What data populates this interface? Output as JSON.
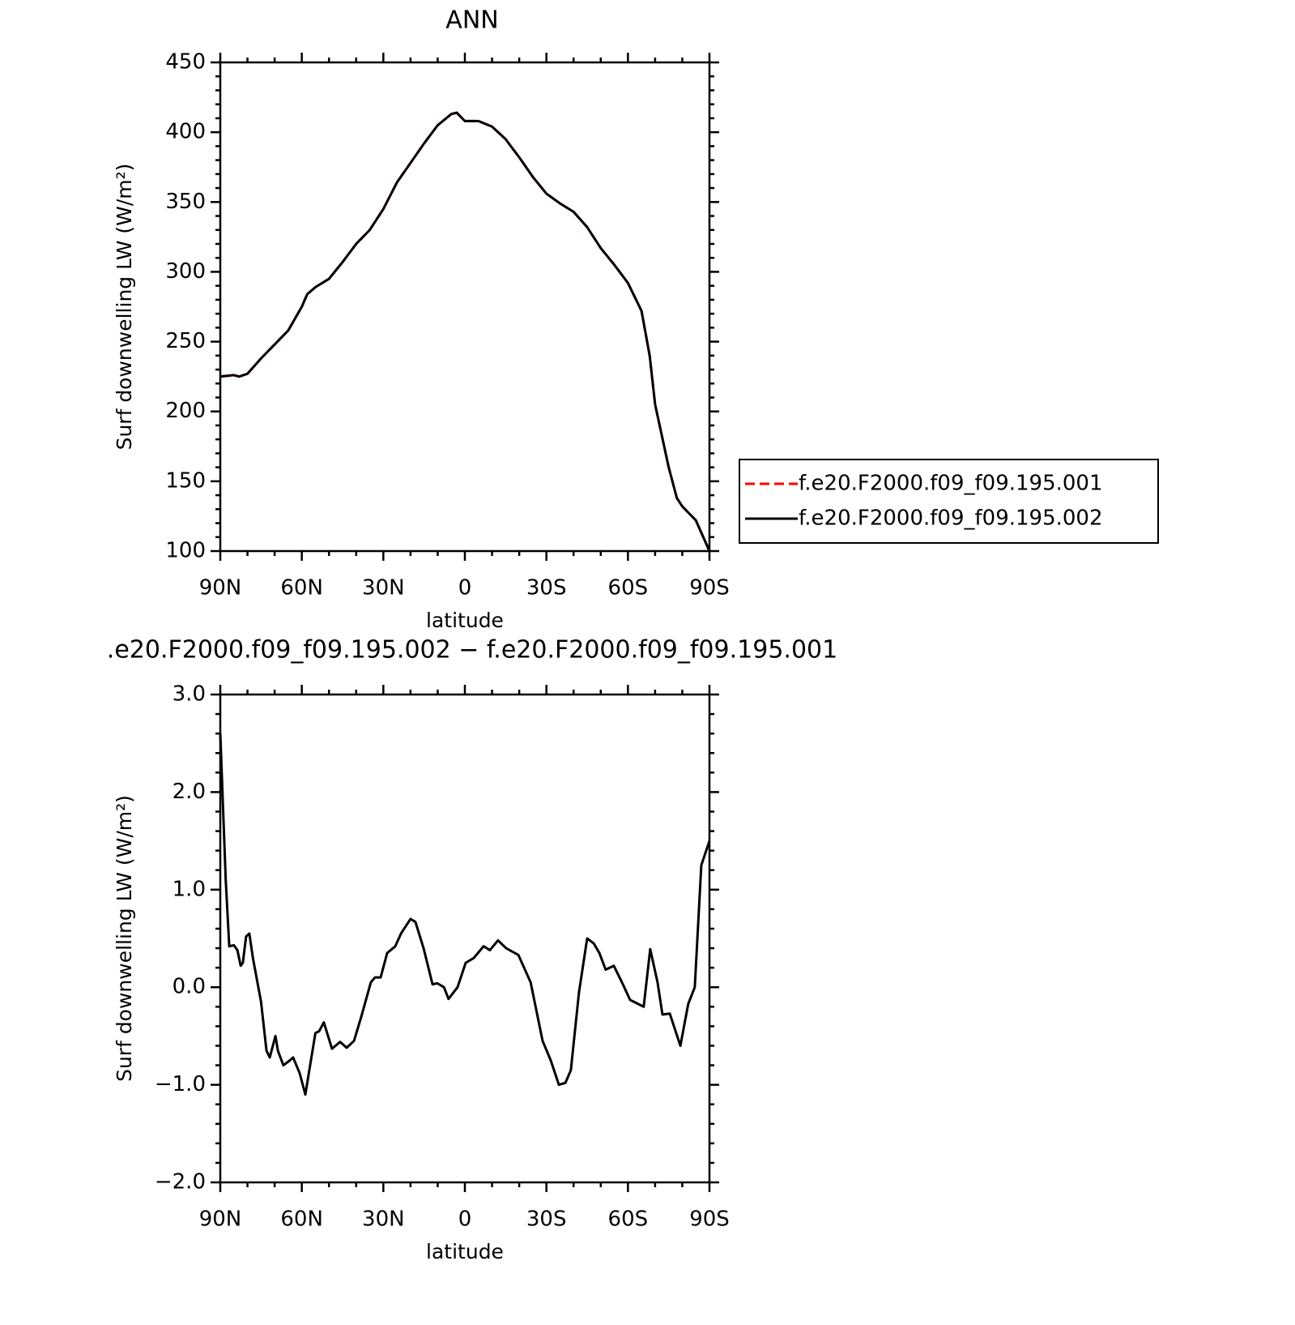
{
  "chart_data": [
    {
      "type": "line",
      "title": "ANN",
      "xlabel": "latitude",
      "ylabel": "Surf downwelling LW (W/m²)",
      "x": [
        90,
        85,
        83,
        80,
        75,
        70,
        65,
        60,
        58,
        55,
        50,
        45,
        40,
        35,
        30,
        25,
        20,
        15,
        10,
        5,
        3,
        0,
        -5,
        -10,
        -15,
        -20,
        -25,
        -30,
        -35,
        -40,
        -45,
        -50,
        -55,
        -60,
        -65,
        -68,
        -70,
        -75,
        -78,
        -80,
        -85,
        -90
      ],
      "series": [
        {
          "name": "f.e20.F2000.f09_f09.195.001",
          "color": "#ff0000",
          "dash": true,
          "values": [
            225,
            226,
            225,
            227,
            238,
            248,
            258,
            275,
            284,
            289,
            295,
            307,
            320,
            330,
            345,
            364,
            378,
            392,
            405,
            413,
            414,
            408,
            408,
            404,
            395,
            382,
            368,
            356,
            349,
            343,
            332,
            317,
            305,
            292,
            272,
            240,
            205,
            160,
            138,
            132,
            122,
            100
          ]
        },
        {
          "name": "f.e20.F2000.f09_f09.195.002",
          "color": "#000000",
          "dash": false,
          "values": [
            225,
            226,
            225,
            227,
            238,
            248,
            258,
            275,
            284,
            289,
            295,
            307,
            320,
            330,
            345,
            364,
            378,
            392,
            405,
            413,
            414,
            408,
            408,
            404,
            395,
            382,
            368,
            356,
            349,
            343,
            332,
            317,
            305,
            292,
            272,
            240,
            205,
            160,
            138,
            132,
            122,
            100
          ]
        }
      ],
      "xlim": [
        90,
        -90
      ],
      "xticks": [
        {
          "value": 90,
          "label": "90N"
        },
        {
          "value": 60,
          "label": "60N"
        },
        {
          "value": 30,
          "label": "30N"
        },
        0,
        {
          "value": -30,
          "label": "30S"
        },
        {
          "value": -60,
          "label": "60S"
        },
        {
          "value": -90,
          "label": "90S"
        }
      ],
      "ylim": [
        100,
        450
      ],
      "yticks": [
        100,
        150,
        200,
        250,
        300,
        350,
        400,
        450
      ],
      "legend": "right"
    },
    {
      "type": "line",
      "title": ".e20.F2000.f09_f09.195.002 − f.e20.F2000.f09_f09.195.001",
      "xlabel": "latitude",
      "ylabel": "Surf downwelling LW (W/m²)",
      "x": [
        90,
        88,
        86.7,
        85,
        83.7,
        82.5,
        81.7,
        80.5,
        79.3,
        78,
        75,
        73,
        71.8,
        69.7,
        68.8,
        66.8,
        64.4,
        63.2,
        60.8,
        58.7,
        55,
        53.6,
        51.9,
        48.9,
        45.9,
        43.5,
        40.8,
        38.1,
        34.6,
        33.1,
        31,
        28.6,
        25.6,
        23.5,
        20,
        18.2,
        15.2,
        11.9,
        10.1,
        7.7,
        6,
        2.7,
        -0.3,
        -3.3,
        -6.9,
        -9.2,
        -12.2,
        -15.2,
        -19.7,
        -24.2,
        -28.6,
        -31.6,
        -34.6,
        -37,
        -39,
        -42,
        -45,
        -47.4,
        -49.5,
        -51.8,
        -54.8,
        -57.8,
        -60.8,
        -64.4,
        -65.8,
        -68.2,
        -70.9,
        -72.7,
        -75.4,
        -79.3,
        -82.2,
        -84.6,
        -87,
        -90
      ],
      "series": [
        {
          "name": null,
          "color": "#000000",
          "dash": false,
          "values": [
            2.6,
            1.1,
            0.42,
            0.43,
            0.38,
            0.22,
            0.25,
            0.52,
            0.55,
            0.3,
            -0.15,
            -0.65,
            -0.72,
            -0.5,
            -0.65,
            -0.8,
            -0.75,
            -0.72,
            -0.88,
            -1.1,
            -0.47,
            -0.45,
            -0.36,
            -0.63,
            -0.56,
            -0.62,
            -0.55,
            -0.3,
            0.05,
            0.1,
            0.1,
            0.35,
            0.42,
            0.55,
            0.7,
            0.67,
            0.4,
            0.03,
            0.04,
            0.0,
            -0.12,
            0.0,
            0.25,
            0.3,
            0.42,
            0.38,
            0.48,
            0.4,
            0.33,
            0.05,
            -0.55,
            -0.75,
            -1.0,
            -0.98,
            -0.85,
            -0.05,
            0.5,
            0.45,
            0.35,
            0.18,
            0.22,
            0.05,
            -0.13,
            -0.18,
            -0.2,
            0.39,
            0.05,
            -0.28,
            -0.27,
            -0.6,
            -0.17,
            0.0,
            1.25,
            1.5
          ]
        }
      ],
      "xlim": [
        90,
        -90
      ],
      "xticks": [
        {
          "value": 90,
          "label": "90N"
        },
        {
          "value": 60,
          "label": "60N"
        },
        {
          "value": 30,
          "label": "30N"
        },
        0,
        {
          "value": -30,
          "label": "30S"
        },
        {
          "value": -60,
          "label": "60S"
        },
        {
          "value": -90,
          "label": "90S"
        }
      ],
      "ylim": [
        -2,
        3
      ],
      "yticks": [
        {
          "value": -2,
          "label": "−2.0"
        },
        {
          "value": -1,
          "label": "−1.0"
        },
        {
          "value": 0,
          "label": "0.0"
        },
        {
          "value": 1,
          "label": "1.0"
        },
        {
          "value": 2,
          "label": "2.0"
        },
        {
          "value": 3,
          "label": "3.0"
        }
      ]
    }
  ]
}
